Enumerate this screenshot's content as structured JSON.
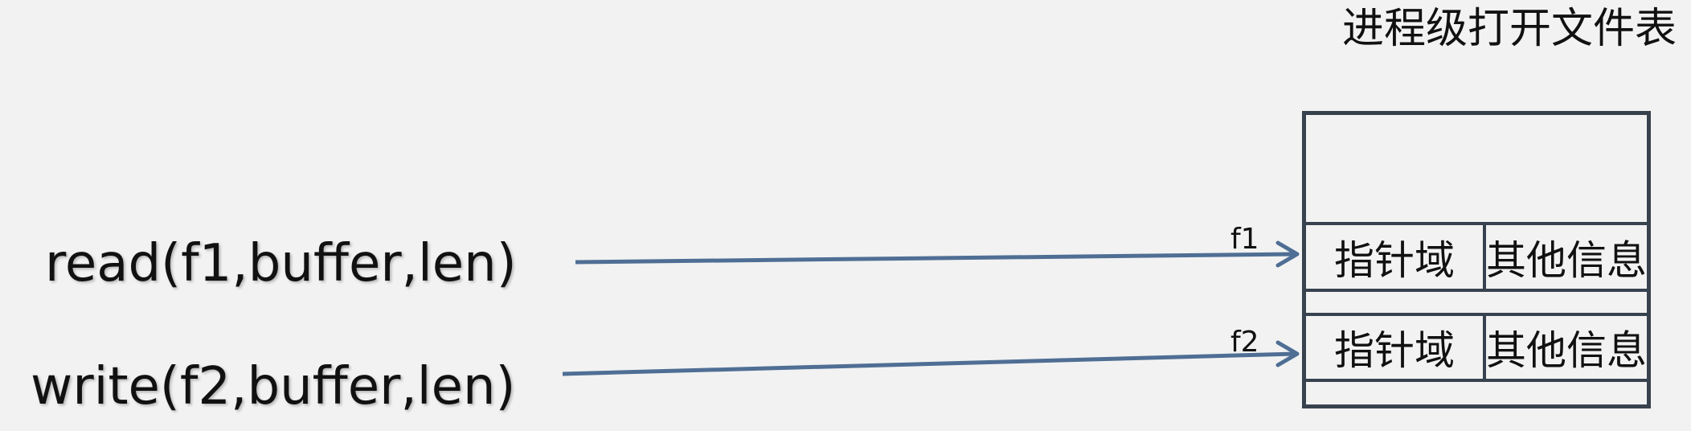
{
  "title": "进程级打开文件表",
  "calls": [
    {
      "text": "read(f1,buffer,len)"
    },
    {
      "text": "write(f2,buffer,len)"
    }
  ],
  "fd_labels": [
    "f1",
    "f2"
  ],
  "table": {
    "entries": [
      {
        "pointer": "指针域",
        "other": "其他信息"
      },
      {
        "pointer": "指针域",
        "other": "其他信息"
      }
    ]
  },
  "colors": {
    "background": "#f2f2f2",
    "table_border": "#38424f",
    "arrow": "#4f6e94"
  }
}
